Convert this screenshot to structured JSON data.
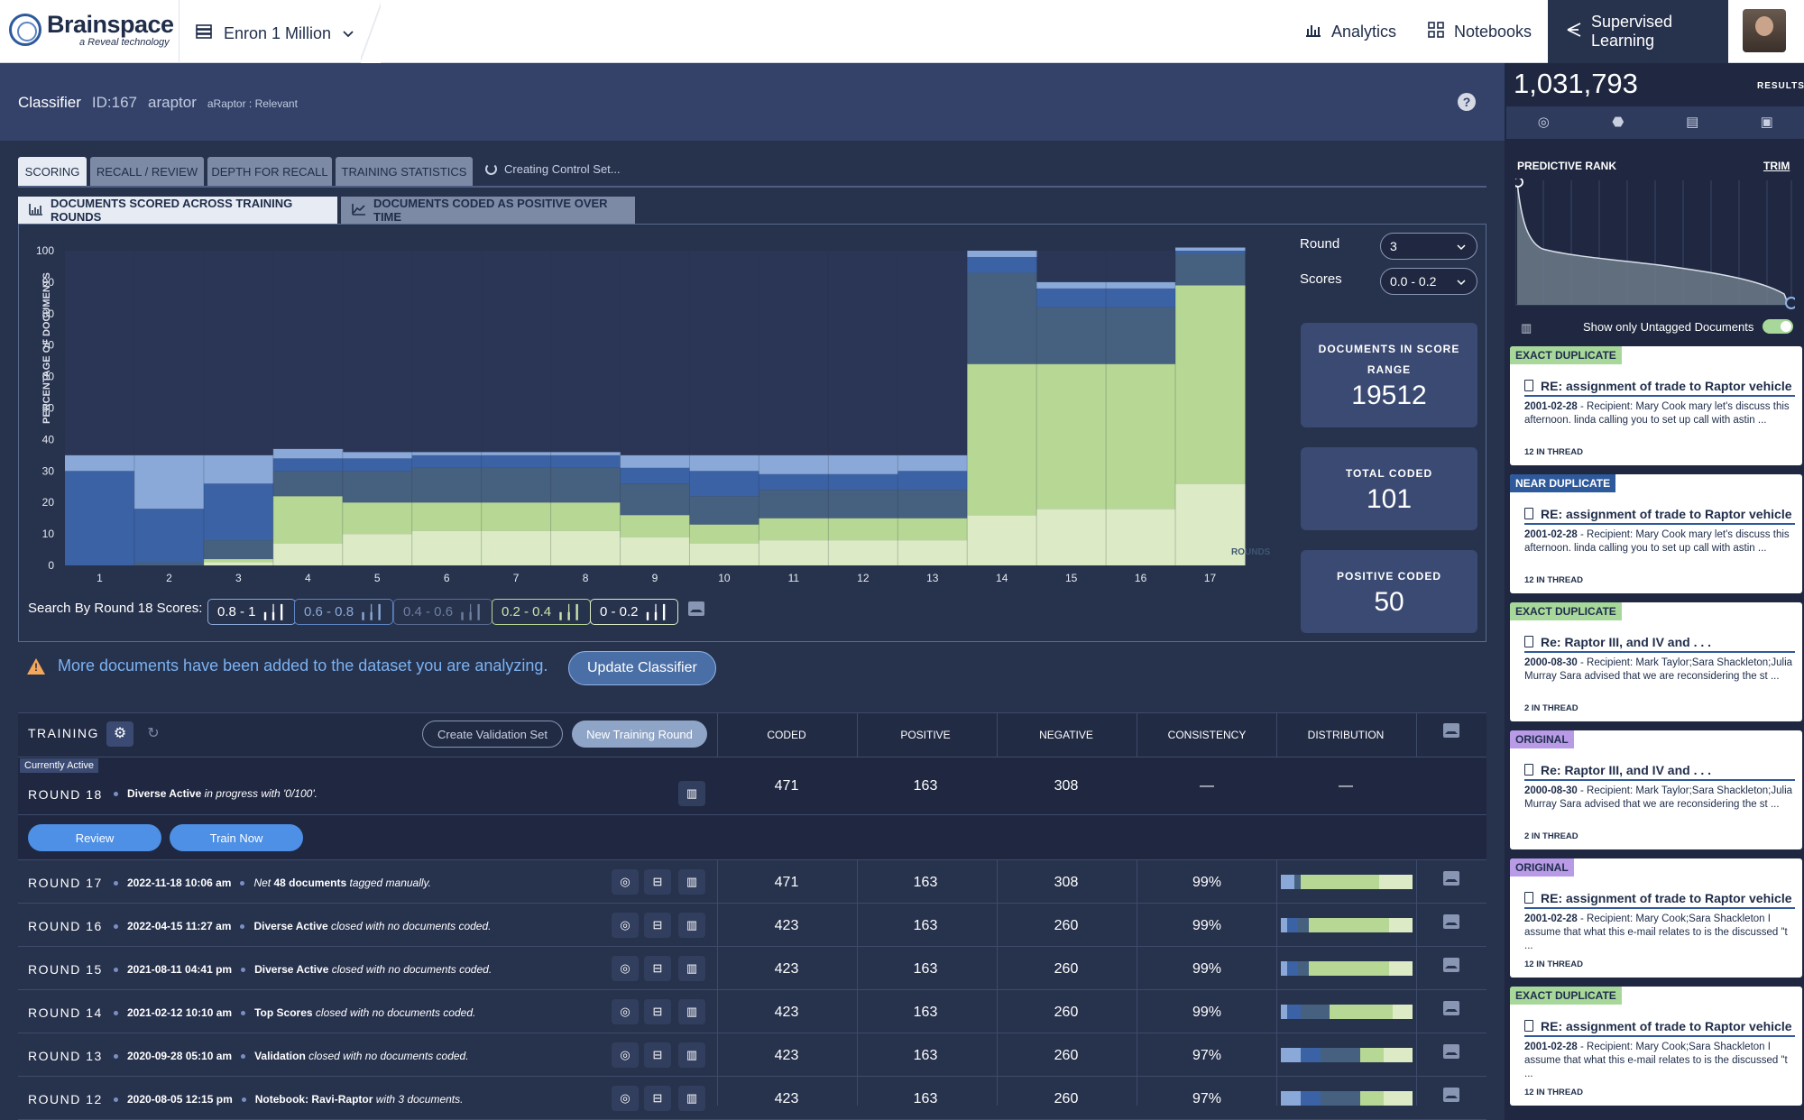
{
  "app": {
    "brand": "Brainspace",
    "brand_sub": "a Reveal technology",
    "project": "Enron 1 Million",
    "nav": [
      "Analytics",
      "Notebooks",
      "Supervised Learning"
    ]
  },
  "header": {
    "classifier": "Classifier",
    "id": "ID:167",
    "name": "araptor",
    "tag": "aRaptor : Relevant",
    "help": "?"
  },
  "tabs": [
    "SCORING",
    "RECALL / REVIEW",
    "DEPTH FOR RECALL",
    "TRAINING STATISTICS"
  ],
  "status_text": "Creating Control Set...",
  "subtabs": [
    "DOCUMENTS SCORED ACROSS TRAINING ROUNDS",
    "DOCUMENTS CODED AS POSITIVE OVER TIME"
  ],
  "chart_data": {
    "type": "bar",
    "title": "",
    "ylabel": "PERCENTAGE OF DOCUMENTS",
    "xlabel": "ROUNDS",
    "ylim": [
      0,
      100
    ],
    "yticks": [
      100,
      90,
      80,
      70,
      60,
      50,
      40,
      30,
      20,
      10,
      0
    ],
    "categories": [
      "1",
      "2",
      "3",
      "4",
      "5",
      "6",
      "7",
      "8",
      "9",
      "10",
      "11",
      "12",
      "13",
      "14",
      "15",
      "16",
      "17"
    ],
    "stacked": true,
    "series": [
      {
        "name": "0 - 0.2",
        "color": "#dcebc5",
        "values": [
          0,
          0,
          1,
          7,
          10,
          11,
          11,
          11,
          9,
          7,
          8,
          8,
          8,
          16,
          18,
          18,
          26
        ]
      },
      {
        "name": "0.2 - 0.4",
        "color": "#b7d894",
        "values": [
          0,
          0,
          1,
          15,
          10,
          9,
          9,
          9,
          7,
          6,
          7,
          7,
          7,
          48,
          46,
          46,
          63
        ]
      },
      {
        "name": "0.4 - 0.6",
        "color": "#46607f",
        "values": [
          0,
          1,
          6,
          8,
          10,
          11,
          11,
          11,
          10,
          9,
          9,
          9,
          9,
          29,
          18,
          18,
          10
        ]
      },
      {
        "name": "0.6 - 0.8",
        "color": "#3b62a4",
        "values": [
          30,
          17,
          18,
          4,
          4,
          4,
          4,
          4,
          5,
          8,
          5,
          5,
          6,
          5,
          6,
          6,
          1
        ]
      },
      {
        "name": "0.8 - 1",
        "color": "#8ba9d8",
        "values": [
          5,
          17,
          9,
          3,
          2,
          1,
          1,
          1,
          4,
          5,
          6,
          6,
          5,
          2,
          2,
          2,
          1
        ]
      }
    ]
  },
  "controls": {
    "round_label": "Round",
    "round_value": "3",
    "scores_label": "Scores",
    "scores_value": "0.0 - 0.2"
  },
  "stats": [
    {
      "title": "DOCUMENTS IN SCORE RANGE",
      "value": "19512"
    },
    {
      "title": "TOTAL CODED",
      "value": "101"
    },
    {
      "title": "POSITIVE CODED",
      "value": "50"
    }
  ],
  "search": {
    "label": "Search By Round 18 Scores:",
    "pills": [
      "0.8 - 1",
      "0.6 - 0.8",
      "0.4 - 0.6",
      "0.2 - 0.4",
      "0 - 0.2"
    ]
  },
  "warning": {
    "text": "More documents have been added to the dataset you are analyzing.",
    "button": "Update Classifier"
  },
  "training": {
    "label": "TRAINING",
    "create_validation": "Create Validation Set",
    "new_round": "New Training Round",
    "columns": [
      "CODED",
      "POSITIVE",
      "NEGATIVE",
      "CONSISTENCY",
      "DISTRIBUTION"
    ],
    "current_badge": "Currently Active",
    "current": {
      "round": "ROUND 18",
      "desc_bold": "Diverse Active",
      "desc_rest": "in progress with '0/100'.",
      "coded": "471",
      "positive": "163",
      "negative": "308",
      "consistency": "—",
      "distribution": "—"
    },
    "review_btn": "Review",
    "train_btn": "Train Now",
    "rows": [
      {
        "round": "ROUND 17",
        "date": "2022-11-18 10:06 am",
        "pre": "Net ",
        "bold": "48 documents",
        "rest": " tagged manually.",
        "coded": "471",
        "positive": "163",
        "negative": "308",
        "consistency": "99%",
        "dist": [
          0.1,
          0,
          0.05,
          0.6,
          0.25
        ]
      },
      {
        "round": "ROUND 16",
        "date": "2022-04-15 11:27 am",
        "pre": "",
        "bold": "Diverse Active",
        "rest": " closed with no documents coded.",
        "coded": "423",
        "positive": "163",
        "negative": "260",
        "consistency": "99%",
        "dist": [
          0.05,
          0.08,
          0.08,
          0.61,
          0.18
        ]
      },
      {
        "round": "ROUND 15",
        "date": "2021-08-11 04:41 pm",
        "pre": "",
        "bold": "Diverse Active",
        "rest": " closed with no documents coded.",
        "coded": "423",
        "positive": "163",
        "negative": "260",
        "consistency": "99%",
        "dist": [
          0.05,
          0.08,
          0.08,
          0.61,
          0.18
        ]
      },
      {
        "round": "ROUND 14",
        "date": "2021-02-12 10:10 am",
        "pre": "",
        "bold": "Top Scores",
        "rest": " closed with no documents coded.",
        "coded": "423",
        "positive": "163",
        "negative": "260",
        "consistency": "99%",
        "dist": [
          0.05,
          0.1,
          0.22,
          0.48,
          0.15
        ]
      },
      {
        "round": "ROUND 13",
        "date": "2020-09-28 05:10 am",
        "pre": "",
        "bold": "Validation",
        "rest": " closed with no documents coded.",
        "coded": "423",
        "positive": "163",
        "negative": "260",
        "consistency": "97%",
        "dist": [
          0.15,
          0.15,
          0.3,
          0.18,
          0.22
        ]
      },
      {
        "round": "ROUND 12",
        "date": "2020-08-05 12:15 pm",
        "pre": "",
        "bold": "Notebook: Ravi-Raptor",
        "rest": " with 3 documents.",
        "coded": "423",
        "positive": "163",
        "negative": "260",
        "consistency": "97%",
        "dist": [
          0.15,
          0.15,
          0.3,
          0.18,
          0.22
        ]
      }
    ]
  },
  "sidebar": {
    "count": "1,031,793",
    "results": "RESULTS",
    "predictive_rank": "PREDICTIVE RANK",
    "trim": "TRIM",
    "untagged": "Show only Untagged Documents",
    "cards": [
      {
        "label": "EXACT DUPLICATE",
        "label_color": "#a7d89a",
        "title": "RE: assignment of trade to Raptor vehicle",
        "date": "2001-02-28",
        "snippet": " - Recipient: Mary Cook mary let's discuss this afternoon. linda calling you to set up call with astin ...",
        "thread": "12 IN THREAD"
      },
      {
        "label": "NEAR DUPLICATE",
        "label_color": "#2e5a9c",
        "title": "RE: assignment of trade to Raptor vehicle",
        "date": "2001-02-28",
        "snippet": " - Recipient: Mary Cook mary let's discuss this afternoon. linda calling you to set up call with astin ...",
        "thread": "12 IN THREAD"
      },
      {
        "label": "EXACT DUPLICATE",
        "label_color": "#a7d89a",
        "title": "Re: Raptor III, and IV and . . .",
        "date": "2000-08-30",
        "snippet": " - Recipient: Mark Taylor;Sara Shackleton;Julia Murray Sara advised that we are reconsidering the st ...",
        "thread": "2 IN THREAD"
      },
      {
        "label": "ORIGINAL",
        "label_color": "#b89ae6",
        "title": "Re: Raptor III, and IV and . . .",
        "date": "2000-08-30",
        "snippet": " - Recipient: Mark Taylor;Sara Shackleton;Julia Murray Sara advised that we are reconsidering the st ...",
        "thread": "2 IN THREAD"
      },
      {
        "label": "ORIGINAL",
        "label_color": "#b89ae6",
        "title": "RE: assignment of trade to Raptor vehicle",
        "date": "2001-02-28",
        "snippet": " - Recipient: Mary Cook;Sara Shackleton I assume that what this e-mail relates to is the discussed \"t ...",
        "thread": "12 IN THREAD"
      },
      {
        "label": "EXACT DUPLICATE",
        "label_color": "#a7d89a",
        "title": "RE: assignment of trade to Raptor vehicle",
        "date": "2001-02-28",
        "snippet": " - Recipient: Mary Cook;Sara Shackleton I assume that what this e-mail relates to is the discussed \"t ...",
        "thread": "12 IN THREAD"
      }
    ]
  }
}
